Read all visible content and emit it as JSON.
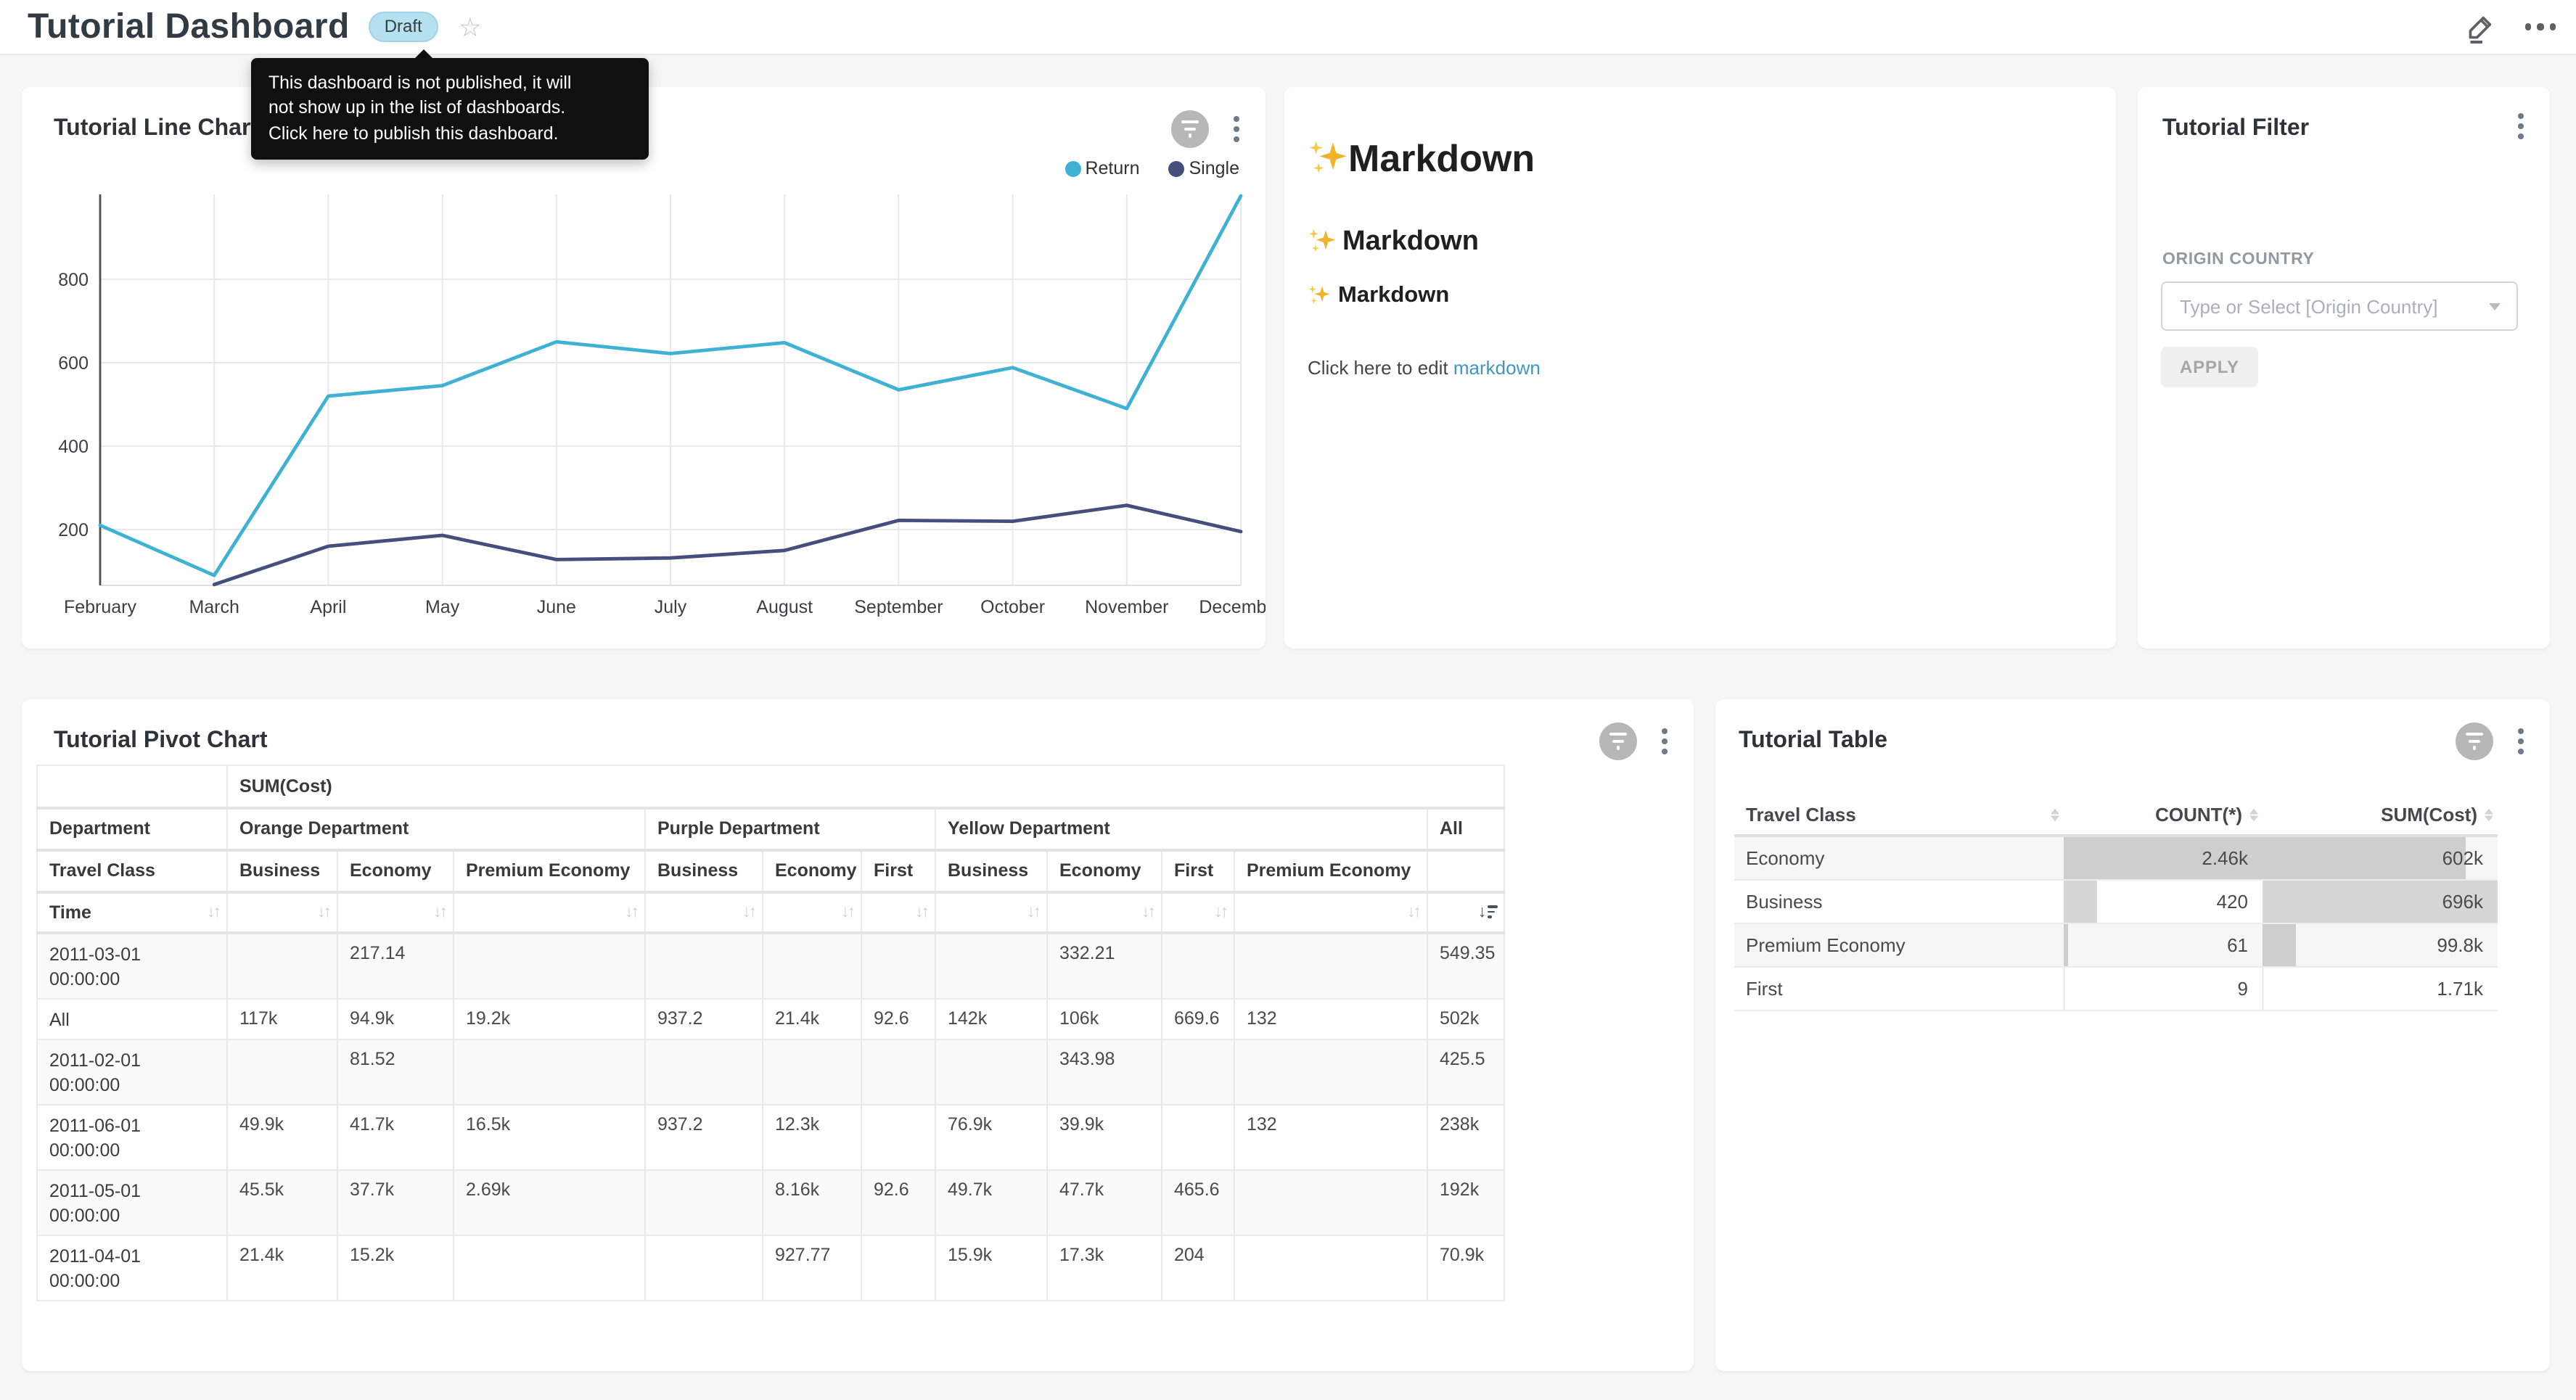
{
  "header": {
    "title": "Tutorial Dashboard",
    "draft_badge": "Draft",
    "tooltip_lines": [
      "This dashboard is not published, it will",
      "not show up in the list of dashboards.",
      "Click here to publish this dashboard."
    ]
  },
  "line_panel": {
    "title": "Tutorial Line Chart"
  },
  "chart_data": {
    "type": "line",
    "title": "Tutorial Line Chart",
    "categories": [
      "February",
      "March",
      "April",
      "May",
      "June",
      "July",
      "August",
      "September",
      "October",
      "November",
      "December"
    ],
    "series": [
      {
        "name": "Return",
        "color": "#3fb1d3",
        "values": [
          210,
          90,
          520,
          545,
          650,
          622,
          648,
          535,
          588,
          490,
          1000
        ]
      },
      {
        "name": "Single",
        "color": "#454e7c",
        "values": [
          null,
          68,
          160,
          186,
          128,
          132,
          150,
          222,
          220,
          258,
          195
        ]
      }
    ],
    "yticks": [
      200,
      400,
      600,
      800
    ],
    "ylim": [
      67,
      1003
    ],
    "grid": true,
    "legend_position": "top-right"
  },
  "markdown": {
    "sparkle": "✨",
    "h1": "Markdown",
    "h2": "Markdown",
    "h3": "Markdown",
    "body_prefix": "Click here to edit ",
    "body_link": "markdown"
  },
  "filter_panel": {
    "title": "Tutorial Filter",
    "field_label": "ORIGIN COUNTRY",
    "placeholder": "Type or Select [Origin Country]",
    "apply_label": "APPLY"
  },
  "pivot_panel": {
    "title": "Tutorial Pivot Chart",
    "metric_label": "SUM(Cost)",
    "dim_col_label": "Department",
    "class_label": "Travel Class",
    "time_label": "Time",
    "col_groups": [
      {
        "label": "Orange Department",
        "cols": [
          "Business",
          "Economy",
          "Premium Economy"
        ]
      },
      {
        "label": "Purple Department",
        "cols": [
          "Business",
          "Economy",
          "First"
        ]
      },
      {
        "label": "Yellow Department",
        "cols": [
          "Business",
          "Economy",
          "First",
          "Premium Economy"
        ]
      },
      {
        "label": "All",
        "cols": [
          ""
        ]
      }
    ],
    "rows": [
      {
        "time": "2011-03-01 00:00:00",
        "values": [
          "",
          "217.14",
          "",
          "",
          "",
          "",
          "",
          "332.21",
          "",
          "",
          "549.35"
        ]
      },
      {
        "time": "All",
        "values": [
          "117k",
          "94.9k",
          "19.2k",
          "937.2",
          "21.4k",
          "92.6",
          "142k",
          "106k",
          "669.6",
          "132",
          "502k"
        ]
      },
      {
        "time": "2011-02-01 00:00:00",
        "values": [
          "",
          "81.52",
          "",
          "",
          "",
          "",
          "",
          "343.98",
          "",
          "",
          "425.5"
        ]
      },
      {
        "time": "2011-06-01 00:00:00",
        "values": [
          "49.9k",
          "41.7k",
          "16.5k",
          "937.2",
          "12.3k",
          "",
          "76.9k",
          "39.9k",
          "",
          "132",
          "238k"
        ]
      },
      {
        "time": "2011-05-01 00:00:00",
        "values": [
          "45.5k",
          "37.7k",
          "2.69k",
          "",
          "8.16k",
          "92.6",
          "49.7k",
          "47.7k",
          "465.6",
          "",
          "192k"
        ]
      },
      {
        "time": "2011-04-01 00:00:00",
        "values": [
          "21.4k",
          "15.2k",
          "",
          "",
          "927.77",
          "",
          "15.9k",
          "17.3k",
          "204",
          "",
          "70.9k"
        ]
      }
    ]
  },
  "table_panel": {
    "title": "Tutorial Table",
    "columns": [
      "Travel Class",
      "COUNT(*)",
      "SUM(Cost)"
    ],
    "bar_color": "rgba(0,0,0,0.16)",
    "rows": [
      {
        "travel_class": "Economy",
        "count": "2.46k",
        "count_pct": 100,
        "sum": "602k",
        "sum_pct": 86.5
      },
      {
        "travel_class": "Business",
        "count": "420",
        "count_pct": 17,
        "sum": "696k",
        "sum_pct": 100
      },
      {
        "travel_class": "Premium Economy",
        "count": "61",
        "count_pct": 2.5,
        "sum": "99.8k",
        "sum_pct": 14.3
      },
      {
        "travel_class": "First",
        "count": "9",
        "count_pct": 0.4,
        "sum": "1.71k",
        "sum_pct": 0.3
      }
    ]
  }
}
